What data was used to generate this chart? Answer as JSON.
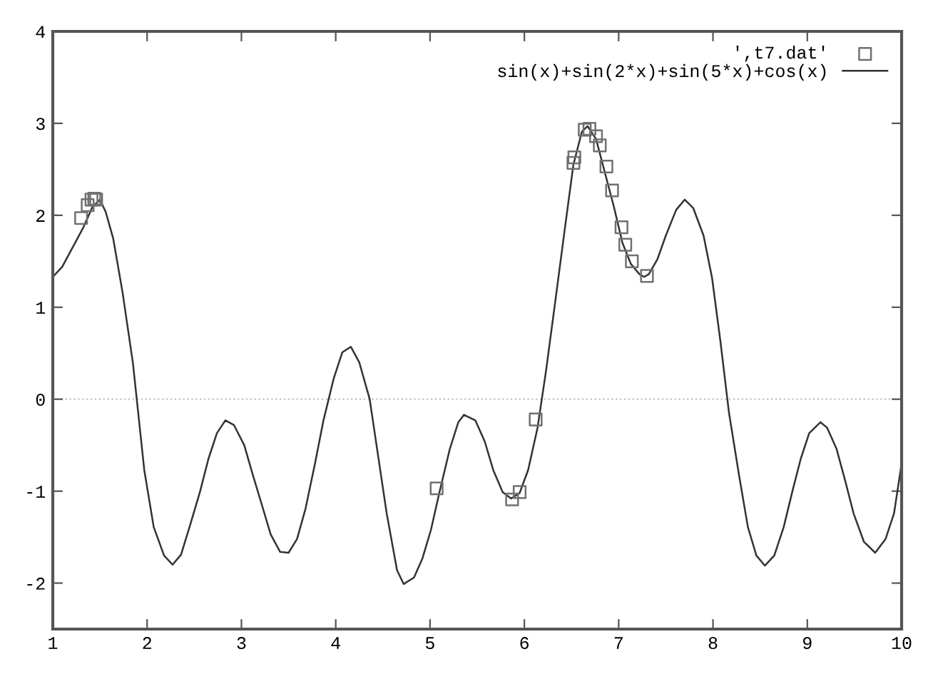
{
  "chart_data": {
    "type": "line",
    "xlim": [
      1,
      10
    ],
    "ylim": [
      -2.5,
      4
    ],
    "xticks": [
      1,
      2,
      3,
      4,
      5,
      6,
      7,
      8,
      9,
      10
    ],
    "yticks": [
      -2,
      -1,
      0,
      1,
      2,
      3,
      4
    ],
    "grid": false,
    "legend": "top right",
    "ref_lines": [
      {
        "axis": "y",
        "value": 0,
        "color": "#c0c0c0",
        "line_style": "dotted"
      }
    ],
    "series": [
      {
        "name": "',t7.dat'",
        "type": "scatter",
        "marker": "square",
        "color": "#707070",
        "x": [
          1.3,
          1.37,
          1.41,
          1.44,
          1.46,
          5.07,
          5.87,
          5.95,
          6.12,
          6.52,
          6.53,
          6.64,
          6.69,
          6.76,
          6.8,
          6.87,
          6.93,
          7.03,
          7.07,
          7.14,
          7.3
        ],
        "values": [
          1.97,
          2.11,
          2.17,
          2.18,
          2.17,
          -0.97,
          -1.09,
          -1.01,
          -0.22,
          2.57,
          2.63,
          2.93,
          2.94,
          2.86,
          2.76,
          2.53,
          2.27,
          1.87,
          1.68,
          1.5,
          1.34
        ]
      },
      {
        "name": "sin(x)+sin(2*x)+sin(5*x)+cos(x)",
        "marker": "none",
        "line_style": "solid",
        "color": "#333333",
        "x": [
          1.0,
          1.1,
          1.32,
          1.42,
          1.5,
          1.56,
          1.64,
          1.74,
          1.85,
          1.97,
          2.07,
          2.18,
          2.27,
          2.36,
          2.45,
          2.56,
          2.65,
          2.74,
          2.83,
          2.92,
          3.03,
          3.12,
          3.22,
          3.31,
          3.41,
          3.5,
          3.59,
          3.68,
          3.78,
          3.87,
          3.98,
          4.07,
          4.16,
          4.25,
          4.36,
          4.45,
          4.54,
          4.65,
          4.72,
          4.83,
          4.92,
          5.01,
          5.1,
          5.21,
          5.3,
          5.36,
          5.48,
          5.58,
          5.67,
          5.77,
          5.86,
          5.95,
          6.04,
          6.14,
          6.23,
          6.33,
          6.43,
          6.52,
          6.61,
          6.67,
          6.76,
          6.85,
          6.95,
          7.04,
          7.13,
          7.22,
          7.27,
          7.32,
          7.41,
          7.5,
          7.61,
          7.7,
          7.79,
          7.9,
          7.99,
          8.08,
          8.17,
          8.28,
          8.37,
          8.46,
          8.55,
          8.65,
          8.75,
          8.84,
          8.93,
          9.02,
          9.14,
          9.21,
          9.31,
          9.4,
          9.49,
          9.6,
          9.72,
          9.83,
          9.92,
          10.0
        ],
        "values": [
          1.33,
          1.44,
          1.86,
          2.09,
          2.17,
          2.04,
          1.75,
          1.16,
          0.39,
          -0.77,
          -1.39,
          -1.7,
          -1.8,
          -1.69,
          -1.39,
          -1.01,
          -0.65,
          -0.37,
          -0.23,
          -0.28,
          -0.5,
          -0.82,
          -1.16,
          -1.47,
          -1.66,
          -1.67,
          -1.52,
          -1.19,
          -0.7,
          -0.23,
          0.23,
          0.51,
          0.57,
          0.4,
          0.0,
          -0.62,
          -1.24,
          -1.86,
          -2.01,
          -1.94,
          -1.73,
          -1.42,
          -1.01,
          -0.54,
          -0.25,
          -0.17,
          -0.23,
          -0.46,
          -0.77,
          -1.01,
          -1.08,
          -1.02,
          -0.77,
          -0.31,
          0.31,
          1.08,
          1.86,
          2.55,
          2.91,
          2.97,
          2.83,
          2.48,
          2.09,
          1.7,
          1.47,
          1.36,
          1.33,
          1.36,
          1.52,
          1.78,
          2.06,
          2.17,
          2.08,
          1.78,
          1.32,
          0.62,
          -0.15,
          -0.85,
          -1.39,
          -1.7,
          -1.81,
          -1.7,
          -1.39,
          -1.01,
          -0.65,
          -0.37,
          -0.25,
          -0.31,
          -0.54,
          -0.88,
          -1.24,
          -1.55,
          -1.67,
          -1.52,
          -1.24,
          -0.7
        ]
      }
    ]
  }
}
